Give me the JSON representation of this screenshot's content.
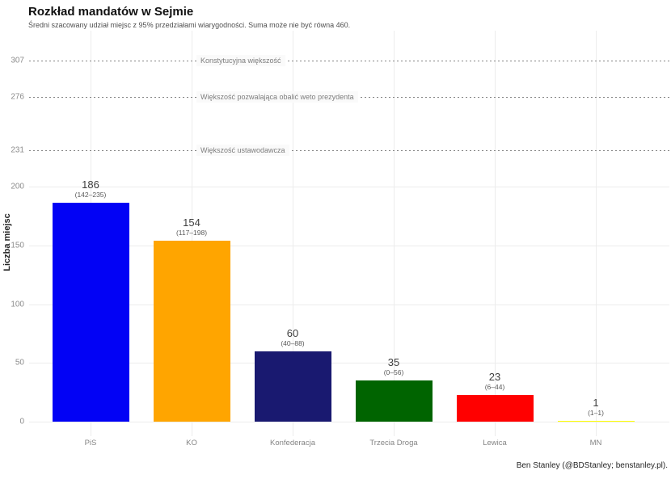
{
  "header": {
    "title": "Rozkład mandatów w Sejmie",
    "subtitle": "Średni szacowany udział miejsc z 95% przedziałami wiarygodności. Suma może nie być równa 460."
  },
  "footer": {
    "credit": "Ben Stanley (@BDStanley; benstanley.pl)."
  },
  "chart_data": {
    "type": "bar",
    "title": "Rozkład mandatów w Sejmie",
    "subtitle": "Średni szacowany udział miejsc z 95% przedziałami wiarygodności. Suma może nie być równa 460.",
    "xlabel": "",
    "ylabel": "Liczba miejsc",
    "categories": [
      "PiS",
      "KO",
      "Konfederacja",
      "Trzecia Droga",
      "Lewica",
      "MN"
    ],
    "values": [
      186,
      154,
      60,
      35,
      23,
      1
    ],
    "intervals": [
      [
        142,
        235
      ],
      [
        117,
        198
      ],
      [
        40,
        88
      ],
      [
        0,
        56
      ],
      [
        6,
        44
      ],
      [
        1,
        1
      ]
    ],
    "interval_labels": [
      "(142–235)",
      "(117–198)",
      "(40–88)",
      "(0–56)",
      "(6–44)",
      "(1–1)"
    ],
    "bar_colors": [
      "#0202F5",
      "#FFA500",
      "#191970",
      "#006400",
      "#FF0000",
      "#FFFF00"
    ],
    "yticks": [
      0,
      50,
      100,
      150,
      200
    ],
    "ylim": [
      0,
      335
    ],
    "grid": true,
    "legend": "none",
    "thresholds": [
      {
        "value": 231,
        "label": "Większość ustawodawcza"
      },
      {
        "value": 276,
        "label": "Większość pozwalająca obalić weto prezydenta"
      },
      {
        "value": 307,
        "label": "Konstytucyjna większość"
      }
    ]
  }
}
